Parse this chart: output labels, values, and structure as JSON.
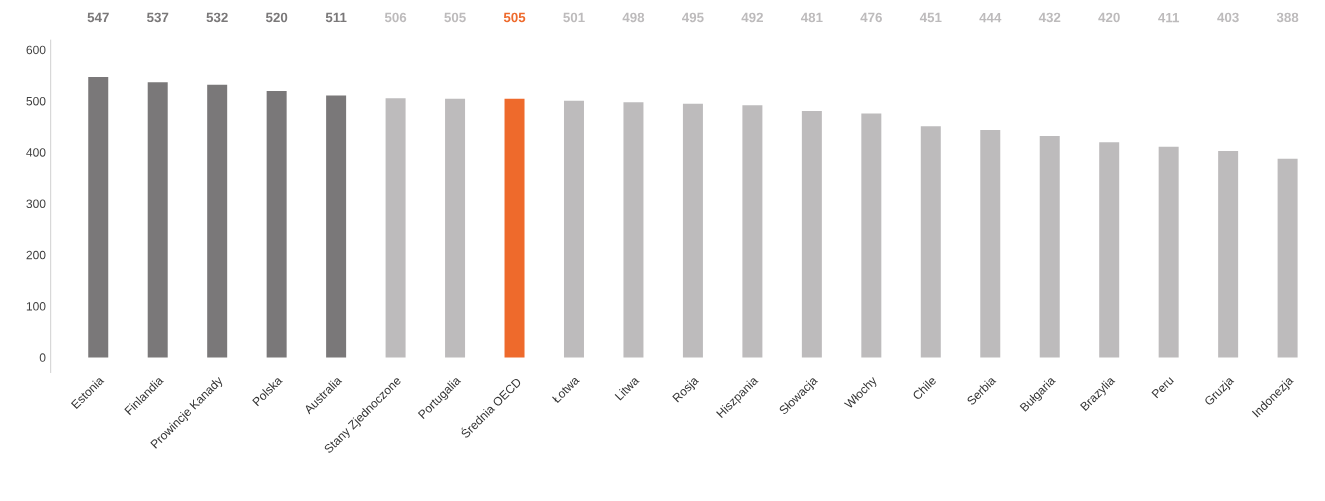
{
  "chart_data": {
    "type": "bar",
    "categories": [
      "Estonia",
      "Finlandia",
      "Prowincje Kanady",
      "Polska",
      "Australia",
      "Stany Zjednoczone",
      "Portugalia",
      "Średnia OECD",
      "Łotwa",
      "Litwa",
      "Rosja",
      "Hiszpania",
      "Słowacja",
      "Włochy",
      "Chile",
      "Serbia",
      "Bułgaria",
      "Brazylia",
      "Peru",
      "Gruzja",
      "Indonezja"
    ],
    "values": [
      547,
      537,
      532,
      520,
      511,
      506,
      505,
      505,
      501,
      498,
      495,
      492,
      481,
      476,
      451,
      444,
      432,
      420,
      411,
      403,
      388
    ],
    "colors": [
      "#7a7879",
      "#7a7879",
      "#7a7879",
      "#7a7879",
      "#7a7879",
      "#bdbbbc",
      "#bdbbbc",
      "#ee6a2c",
      "#bdbbbc",
      "#bdbbbc",
      "#bdbbbc",
      "#bdbbbc",
      "#bdbbbc",
      "#bdbbbc",
      "#bdbbbc",
      "#bdbbbc",
      "#bdbbbc",
      "#bdbbbc",
      "#bdbbbc",
      "#bdbbbc",
      "#bdbbbc"
    ],
    "ylim": [
      -30,
      620
    ],
    "yticks": [
      0,
      100,
      200,
      300,
      400,
      500,
      600
    ],
    "data_labels": true
  }
}
